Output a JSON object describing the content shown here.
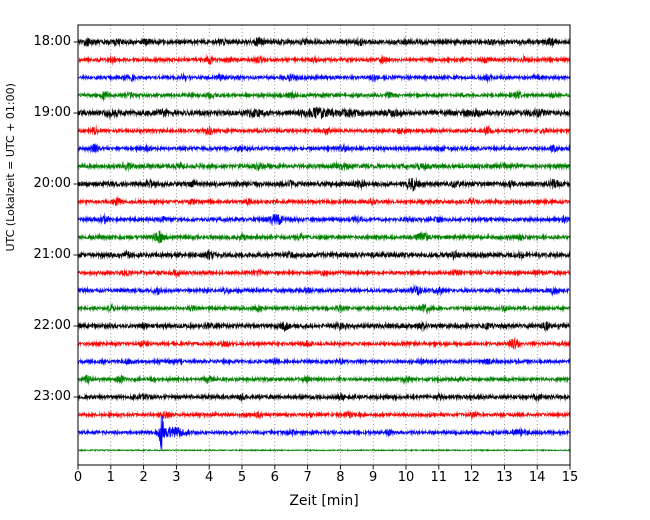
{
  "chart_data": {
    "type": "line",
    "subtype": "seismogram-dayplot",
    "title": "",
    "xlabel": "Zeit  [min]",
    "ylabel": "UTC (Lokalzeit = UTC + 01:00)",
    "x_range": [
      0,
      15
    ],
    "minutes_per_line": 15,
    "grid": {
      "vertical_dotted": true,
      "horizontal": false
    },
    "legend": "none",
    "colors_cycle": [
      "#000000",
      "#ff0000",
      "#0000ff",
      "#008000"
    ],
    "x_tick_labels": [
      "0",
      "1",
      "2",
      "3",
      "4",
      "5",
      "6",
      "7",
      "8",
      "9",
      "10",
      "11",
      "12",
      "13",
      "14",
      "15"
    ],
    "y_ticks": [
      {
        "label": "18:00",
        "row": 0
      },
      {
        "label": "19:00",
        "row": 4
      },
      {
        "label": "20:00",
        "row": 8
      },
      {
        "label": "21:00",
        "row": 12
      },
      {
        "label": "22:00",
        "row": 16
      },
      {
        "label": "23:00",
        "row": 20
      }
    ],
    "traces": [
      {
        "time": "18:00",
        "color": "#000000",
        "base": 1.3,
        "events": [
          [
            0.3,
            1.6,
            0.08
          ],
          [
            1.2,
            1.2,
            0.08
          ],
          [
            2.1,
            1.2,
            0.08
          ],
          [
            4.4,
            1.3,
            0.08
          ],
          [
            5.5,
            2.0,
            0.1
          ],
          [
            6.9,
            1.3,
            0.08
          ],
          [
            8.6,
            1.2,
            0.08
          ],
          [
            10.0,
            1.2,
            0.08
          ],
          [
            12.6,
            1.2,
            0.08
          ],
          [
            14.4,
            1.8,
            0.1
          ]
        ]
      },
      {
        "time": "18:15",
        "color": "#ff0000",
        "base": 1.0,
        "events": [
          [
            1.0,
            1.3,
            0.08
          ],
          [
            4.0,
            2.0,
            0.08
          ],
          [
            5.5,
            1.3,
            0.08
          ],
          [
            7.2,
            1.2,
            0.08
          ],
          [
            9.3,
            1.3,
            0.08
          ],
          [
            12.4,
            1.4,
            0.08
          ],
          [
            13.6,
            1.4,
            0.08
          ]
        ]
      },
      {
        "time": "18:30",
        "color": "#0000ff",
        "base": 1.05,
        "events": [
          [
            1.6,
            1.3,
            0.08
          ],
          [
            3.2,
            1.4,
            0.08
          ],
          [
            4.3,
            1.3,
            0.08
          ],
          [
            6.5,
            1.2,
            0.08
          ],
          [
            9.0,
            1.2,
            0.08
          ],
          [
            12.5,
            1.4,
            0.08
          ],
          [
            14.0,
            1.2,
            0.08
          ]
        ]
      },
      {
        "time": "18:45",
        "color": "#008000",
        "base": 1.0,
        "events": [
          [
            0.8,
            2.4,
            0.07
          ],
          [
            1.6,
            1.3,
            0.08
          ],
          [
            4.0,
            1.2,
            0.08
          ],
          [
            6.5,
            1.3,
            0.08
          ],
          [
            9.5,
            1.2,
            0.08
          ],
          [
            13.4,
            1.8,
            0.09
          ],
          [
            14.5,
            1.2,
            0.08
          ]
        ]
      },
      {
        "time": "19:00",
        "color": "#000000",
        "base": 1.5,
        "events": [
          [
            1.0,
            1.2,
            0.15
          ],
          [
            2.6,
            1.3,
            0.15
          ],
          [
            5.4,
            1.4,
            0.2
          ],
          [
            7.3,
            2.2,
            0.35
          ],
          [
            8.3,
            1.4,
            0.2
          ],
          [
            9.6,
            1.3,
            0.15
          ],
          [
            12.0,
            1.3,
            0.15
          ],
          [
            14.0,
            1.2,
            0.15
          ]
        ]
      },
      {
        "time": "19:15",
        "color": "#ff0000",
        "base": 1.0,
        "events": [
          [
            0.5,
            2.1,
            0.07
          ],
          [
            4.0,
            1.9,
            0.09
          ],
          [
            7.6,
            1.3,
            0.08
          ],
          [
            9.8,
            1.2,
            0.08
          ],
          [
            12.5,
            1.9,
            0.09
          ],
          [
            14.2,
            1.2,
            0.08
          ]
        ]
      },
      {
        "time": "19:30",
        "color": "#0000ff",
        "base": 1.05,
        "events": [
          [
            0.5,
            2.1,
            0.08
          ],
          [
            2.1,
            1.2,
            0.08
          ],
          [
            5.0,
            1.2,
            0.1
          ],
          [
            8.1,
            1.2,
            0.08
          ],
          [
            11.0,
            1.1,
            0.08
          ],
          [
            14.5,
            1.3,
            0.08
          ]
        ]
      },
      {
        "time": "19:45",
        "color": "#008000",
        "base": 1.2,
        "events": [
          [
            1.5,
            1.7,
            0.1
          ],
          [
            3.1,
            1.2,
            0.1
          ],
          [
            5.5,
            1.2,
            0.1
          ],
          [
            8.0,
            1.7,
            0.12
          ],
          [
            10.5,
            1.3,
            0.1
          ],
          [
            13.0,
            1.2,
            0.1
          ]
        ]
      },
      {
        "time": "20:00",
        "color": "#000000",
        "base": 1.3,
        "events": [
          [
            2.2,
            1.9,
            0.08
          ],
          [
            3.5,
            1.5,
            0.08
          ],
          [
            6.5,
            1.3,
            0.08
          ],
          [
            8.6,
            1.5,
            0.1
          ],
          [
            10.2,
            3.3,
            0.12
          ],
          [
            11.5,
            1.3,
            0.08
          ],
          [
            13.2,
            1.3,
            0.08
          ],
          [
            14.5,
            2.3,
            0.1
          ]
        ]
      },
      {
        "time": "20:15",
        "color": "#ff0000",
        "base": 1.0,
        "events": [
          [
            1.2,
            1.9,
            0.08
          ],
          [
            3.5,
            1.1,
            0.08
          ],
          [
            5.2,
            1.2,
            0.08
          ],
          [
            9.0,
            1.1,
            0.08
          ],
          [
            12.0,
            1.1,
            0.08
          ]
        ]
      },
      {
        "time": "20:30",
        "color": "#0000ff",
        "base": 1.1,
        "events": [
          [
            0.8,
            1.9,
            0.08
          ],
          [
            2.6,
            1.3,
            0.08
          ],
          [
            6.0,
            3.2,
            0.15
          ],
          [
            8.5,
            1.2,
            0.08
          ],
          [
            11.0,
            1.2,
            0.08
          ],
          [
            14.8,
            1.9,
            0.08
          ]
        ]
      },
      {
        "time": "20:45",
        "color": "#008000",
        "base": 1.1,
        "events": [
          [
            2.5,
            3.3,
            0.1
          ],
          [
            5.0,
            1.2,
            0.08
          ],
          [
            6.8,
            1.3,
            0.08
          ],
          [
            10.5,
            2.3,
            0.12
          ],
          [
            13.5,
            1.2,
            0.08
          ]
        ]
      },
      {
        "time": "21:00",
        "color": "#000000",
        "base": 1.3,
        "events": [
          [
            1.5,
            1.2,
            0.08
          ],
          [
            4.0,
            1.8,
            0.09
          ],
          [
            6.5,
            1.4,
            0.09
          ],
          [
            9.0,
            1.2,
            0.08
          ],
          [
            11.5,
            1.2,
            0.08
          ],
          [
            13.5,
            1.2,
            0.08
          ]
        ]
      },
      {
        "time": "21:15",
        "color": "#ff0000",
        "base": 1.0,
        "events": [
          [
            1.5,
            1.1,
            0.08
          ],
          [
            3.0,
            1.2,
            0.08
          ],
          [
            5.5,
            1.1,
            0.08
          ],
          [
            7.5,
            1.2,
            0.08
          ],
          [
            11.5,
            1.1,
            0.08
          ],
          [
            14.0,
            1.1,
            0.08
          ]
        ]
      },
      {
        "time": "21:30",
        "color": "#0000ff",
        "base": 1.05,
        "events": [
          [
            2.4,
            2.3,
            0.08
          ],
          [
            4.5,
            1.1,
            0.08
          ],
          [
            7.0,
            1.2,
            0.08
          ],
          [
            10.3,
            2.1,
            0.1
          ],
          [
            11.0,
            1.7,
            0.09
          ],
          [
            14.5,
            1.2,
            0.08
          ]
        ]
      },
      {
        "time": "21:45",
        "color": "#008000",
        "base": 1.0,
        "events": [
          [
            1.0,
            1.2,
            0.08
          ],
          [
            3.5,
            1.1,
            0.08
          ],
          [
            5.5,
            1.2,
            0.08
          ],
          [
            8.0,
            1.1,
            0.08
          ],
          [
            10.6,
            1.9,
            0.1
          ],
          [
            13.0,
            1.1,
            0.08
          ]
        ]
      },
      {
        "time": "22:00",
        "color": "#000000",
        "base": 1.25,
        "events": [
          [
            2.0,
            1.2,
            0.08
          ],
          [
            4.0,
            1.2,
            0.08
          ],
          [
            6.3,
            2.0,
            0.09
          ],
          [
            8.0,
            1.3,
            0.08
          ],
          [
            10.5,
            1.4,
            0.1
          ],
          [
            12.5,
            1.2,
            0.08
          ],
          [
            14.3,
            1.8,
            0.09
          ]
        ]
      },
      {
        "time": "22:15",
        "color": "#ff0000",
        "base": 1.0,
        "events": [
          [
            2.0,
            1.1,
            0.08
          ],
          [
            4.5,
            1.2,
            0.08
          ],
          [
            7.0,
            1.1,
            0.08
          ],
          [
            10.0,
            1.1,
            0.08
          ],
          [
            13.3,
            3.4,
            0.1
          ]
        ]
      },
      {
        "time": "22:30",
        "color": "#0000ff",
        "base": 1.0,
        "events": [
          [
            1.5,
            1.1,
            0.08
          ],
          [
            3.0,
            1.1,
            0.08
          ],
          [
            6.0,
            1.1,
            0.08
          ],
          [
            8.0,
            1.1,
            0.08
          ],
          [
            10.5,
            1.1,
            0.08
          ],
          [
            12.5,
            1.2,
            0.08
          ]
        ]
      },
      {
        "time": "22:45",
        "color": "#008000",
        "base": 1.0,
        "events": [
          [
            0.3,
            1.9,
            0.07
          ],
          [
            1.3,
            1.9,
            0.07
          ],
          [
            4.0,
            1.1,
            0.08
          ],
          [
            7.0,
            1.1,
            0.08
          ],
          [
            10.0,
            1.1,
            0.08
          ]
        ]
      },
      {
        "time": "23:00",
        "color": "#000000",
        "base": 1.15,
        "events": [
          [
            2.0,
            1.1,
            0.08
          ],
          [
            5.0,
            1.1,
            0.08
          ],
          [
            8.0,
            1.1,
            0.08
          ],
          [
            11.0,
            1.1,
            0.08
          ],
          [
            14.0,
            1.1,
            0.08
          ]
        ]
      },
      {
        "time": "23:15",
        "color": "#ff0000",
        "base": 1.0,
        "events": [
          [
            2.7,
            2.4,
            0.07
          ],
          [
            5.5,
            1.1,
            0.08
          ],
          [
            8.3,
            1.3,
            0.08
          ],
          [
            12.0,
            1.1,
            0.08
          ]
        ]
      },
      {
        "time": "23:30",
        "color": "#0000ff",
        "base": 1.0,
        "events": [
          [
            2.55,
            10.0,
            0.05
          ],
          [
            2.9,
            2.5,
            0.25
          ],
          [
            6.5,
            1.2,
            0.08
          ],
          [
            9.5,
            1.3,
            0.08
          ],
          [
            13.5,
            1.7,
            0.15
          ]
        ]
      },
      {
        "time": "23:45",
        "color": "#008000",
        "base": 0.35,
        "events": []
      }
    ]
  }
}
